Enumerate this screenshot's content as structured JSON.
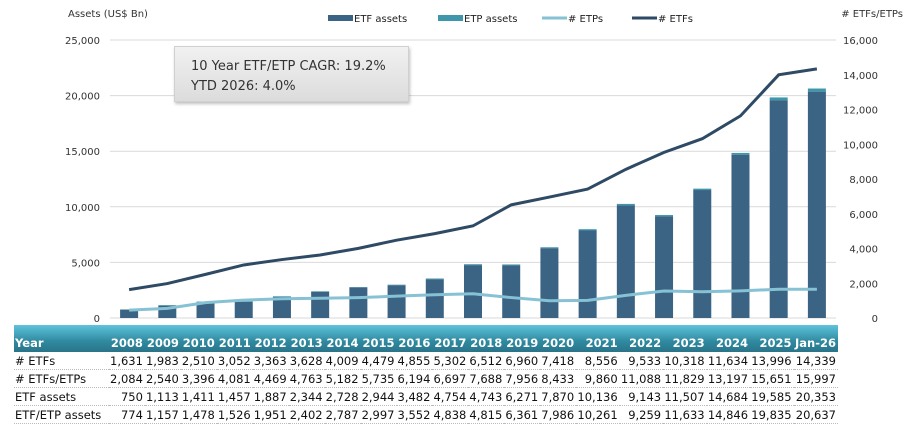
{
  "chart_data": {
    "type": "bar",
    "left_axis_label": "Assets (US$ Bn)",
    "right_axis_label": "# ETFs/ETPs",
    "left_ylim": [
      0,
      25000
    ],
    "left_ticks": [
      "0",
      "5,000",
      "10,000",
      "15,000",
      "20,000",
      "25,000"
    ],
    "right_ylim": [
      0,
      16000
    ],
    "right_ticks": [
      "0",
      "2,000",
      "4,000",
      "6,000",
      "8,000",
      "10,000",
      "12,000",
      "14,000",
      "16,000"
    ],
    "grid": true,
    "legend_placement": "top",
    "legend": [
      "ETF assets",
      "ETP assets",
      "# ETPs",
      "# ETFs"
    ],
    "colors": {
      "etf_assets": "#3a6384",
      "etp_assets": "#3f97ac",
      "etps_line": "#86c2d4",
      "etfs_line": "#2e4a64"
    },
    "categories": [
      "2008",
      "2009",
      "2010",
      "2011",
      "2012",
      "2013",
      "2014",
      "2015",
      "2016",
      "2017",
      "2018",
      "2019",
      "2020",
      "2021",
      "2022",
      "2023",
      "2024",
      "2025",
      "Jan-26"
    ],
    "series": [
      {
        "name": "ETF assets",
        "axis": "left",
        "kind": "bar",
        "values": [
          750,
          1113,
          1411,
          1457,
          1887,
          2344,
          2728,
          2944,
          3482,
          4754,
          4743,
          6271,
          7870,
          10136,
          9143,
          11507,
          14684,
          19585,
          20353
        ]
      },
      {
        "name": "ETF/ETP assets",
        "axis": "left",
        "kind": "bar-total",
        "values": [
          774,
          1157,
          1478,
          1526,
          1951,
          2402,
          2787,
          2997,
          3552,
          4838,
          4815,
          6361,
          7986,
          10261,
          9259,
          11633,
          14846,
          19835,
          20637
        ]
      },
      {
        "name": "# ETFs",
        "axis": "right",
        "kind": "line",
        "values": [
          1631,
          1983,
          2510,
          3052,
          3363,
          3628,
          4009,
          4479,
          4855,
          5302,
          6512,
          6960,
          7418,
          8556,
          9533,
          10318,
          11634,
          13996,
          14339
        ]
      },
      {
        "name": "# ETFs/ETPs",
        "axis": "right",
        "kind": "table",
        "values": [
          2084,
          2540,
          3396,
          4081,
          4469,
          4763,
          5182,
          5735,
          6194,
          6697,
          7688,
          7956,
          8433,
          9860,
          11088,
          11829,
          13197,
          15651,
          15997
        ]
      }
    ]
  },
  "callout": {
    "line1": "10 Year ETF/ETP CAGR: 19.2%",
    "line2": "YTD 2026: 4.0%"
  },
  "table": {
    "header_label": "Year",
    "years": [
      "2008",
      "2009",
      "2010",
      "2011",
      "2012",
      "2013",
      "2014",
      "2015",
      "2016",
      "2017",
      "2018",
      "2019",
      "2020",
      "2021",
      "2022",
      "2023",
      "2024",
      "2025",
      "Jan-26"
    ],
    "rows": [
      {
        "label": "# ETFs",
        "values": [
          "1,631",
          "1,983",
          "2,510",
          "3,052",
          "3,363",
          "3,628",
          "4,009",
          "4,479",
          "4,855",
          "5,302",
          "6,512",
          "6,960",
          "7,418",
          "8,556",
          "9,533",
          "10,318",
          "11,634",
          "13,996",
          "14,339"
        ]
      },
      {
        "label": "# ETFs/ETPs",
        "values": [
          "2,084",
          "2,540",
          "3,396",
          "4,081",
          "4,469",
          "4,763",
          "5,182",
          "5,735",
          "6,194",
          "6,697",
          "7,688",
          "7,956",
          "8,433",
          "9,860",
          "11,088",
          "11,829",
          "13,197",
          "15,651",
          "15,997"
        ]
      },
      {
        "label": "ETF assets",
        "values": [
          "750",
          "1,113",
          "1,411",
          "1,457",
          "1,887",
          "2,344",
          "2,728",
          "2,944",
          "3,482",
          "4,754",
          "4,743",
          "6,271",
          "7,870",
          "10,136",
          "9,143",
          "11,507",
          "14,684",
          "19,585",
          "20,353"
        ]
      },
      {
        "label": "ETF/ETP assets",
        "values": [
          "774",
          "1,157",
          "1,478",
          "1,526",
          "1,951",
          "2,402",
          "2,787",
          "2,997",
          "3,552",
          "4,838",
          "4,815",
          "6,361",
          "7,986",
          "10,261",
          "9,259",
          "11,633",
          "14,846",
          "19,835",
          "20,637"
        ]
      }
    ]
  }
}
